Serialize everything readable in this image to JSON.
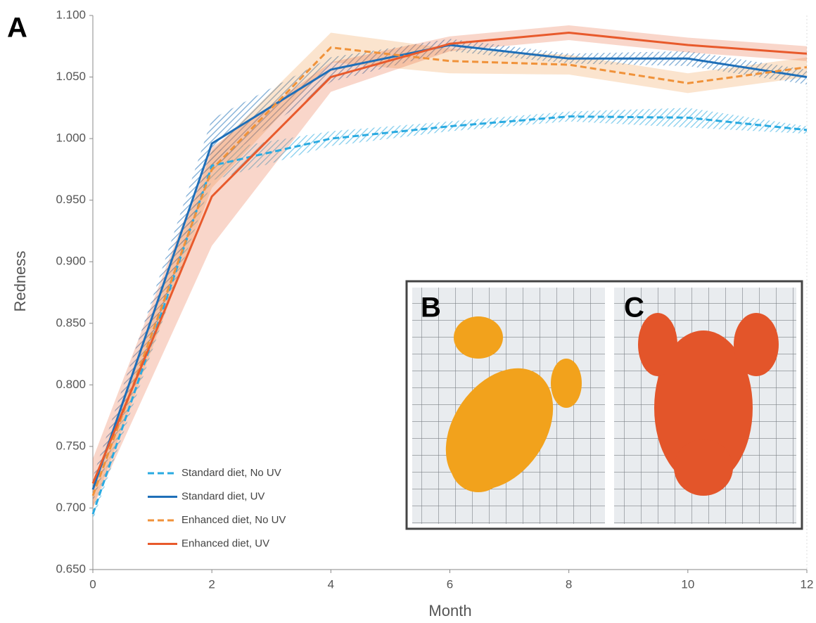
{
  "chart_data": {
    "type": "line",
    "panel_labels": [
      "A",
      "B",
      "C"
    ],
    "x_label": "Month",
    "y_label": "Redness",
    "x": [
      0,
      2,
      4,
      6,
      8,
      10,
      12
    ],
    "xlim": [
      0,
      12
    ],
    "xticks": [
      0,
      2,
      4,
      6,
      8,
      10,
      12
    ],
    "ylim": [
      0.65,
      1.1
    ],
    "yticks": [
      {
        "value": 0.65,
        "label": "0.650"
      },
      {
        "value": 0.7,
        "label": "0.700"
      },
      {
        "value": 0.75,
        "label": "0.750"
      },
      {
        "value": 0.8,
        "label": "0.800"
      },
      {
        "value": 0.85,
        "label": "0.850"
      },
      {
        "value": 0.9,
        "label": "0.900"
      },
      {
        "value": 0.95,
        "label": "0.950"
      },
      {
        "value": 1.0,
        "label": "1.000"
      },
      {
        "value": 1.05,
        "label": "1.050"
      },
      {
        "value": 1.1,
        "label": "1.100"
      }
    ],
    "series": [
      {
        "name": "Standard diet, No UV",
        "color": "#29aae1",
        "dashed": true,
        "hatched": true,
        "values": [
          0.695,
          0.978,
          1.0,
          1.01,
          1.018,
          1.017,
          1.007
        ],
        "errors": [
          0.005,
          0.012,
          0.006,
          0.004,
          0.004,
          0.008,
          0.003
        ]
      },
      {
        "name": "Standard diet,  UV",
        "color": "#1f6fb8",
        "dashed": false,
        "hatched": true,
        "values": [
          0.715,
          0.996,
          1.056,
          1.076,
          1.065,
          1.065,
          1.05
        ],
        "errors": [
          0.01,
          0.02,
          0.01,
          0.005,
          0.004,
          0.006,
          0.006
        ]
      },
      {
        "name": "Enhanced diet, No UV",
        "color": "#f0923a",
        "dashed": true,
        "hatched": false,
        "values": [
          0.71,
          0.975,
          1.074,
          1.063,
          1.06,
          1.045,
          1.058
        ],
        "errors": [
          0.01,
          0.015,
          0.012,
          0.01,
          0.008,
          0.008,
          0.008
        ]
      },
      {
        "name": "Enhanced diet,  UV",
        "color": "#e85a2c",
        "dashed": false,
        "hatched": false,
        "values": [
          0.72,
          0.953,
          1.05,
          1.077,
          1.086,
          1.076,
          1.069
        ],
        "errors": [
          0.02,
          0.04,
          0.012,
          0.006,
          0.006,
          0.006,
          0.006
        ]
      }
    ]
  }
}
